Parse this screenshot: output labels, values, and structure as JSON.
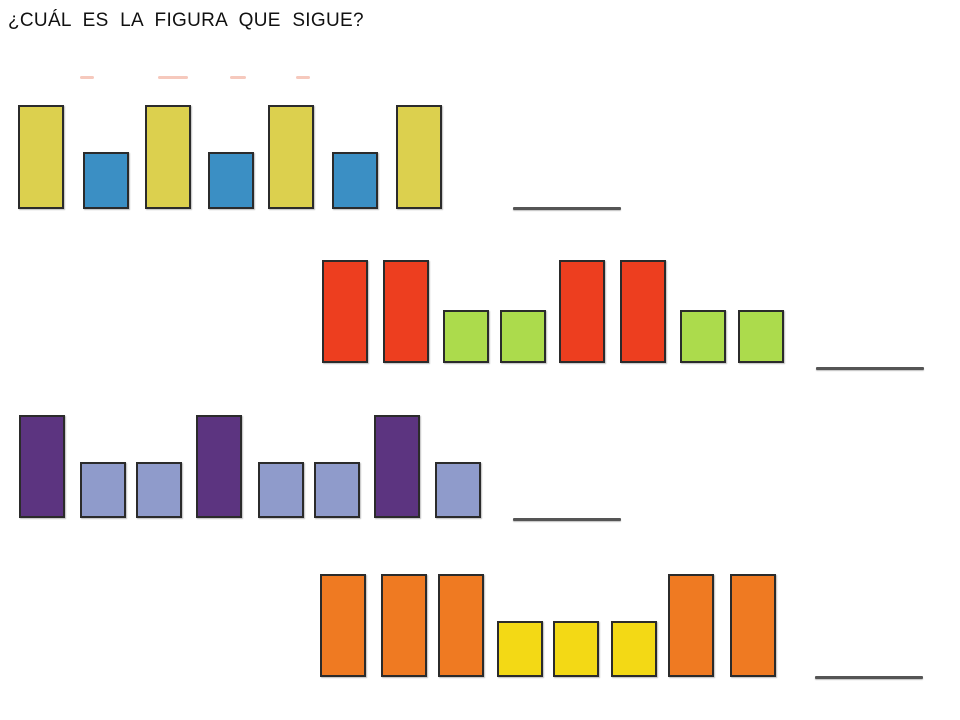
{
  "title": "¿CUÁL ES LA FIGURA QUE SIGUE?",
  "colors": {
    "yellow_olive": "#dcd04e",
    "blue": "#3b8fc4",
    "red": "#ed3e1f",
    "lime": "#acdb4c",
    "purple": "#5c3480",
    "lavender": "#8f9bcb",
    "orange": "#ef7a22",
    "yellow": "#f3d915",
    "answer_line": "#555555"
  },
  "patterns": [
    {
      "name": "pattern-row-1",
      "sequence": [
        "tall",
        "short",
        "tall",
        "short",
        "tall",
        "short",
        "tall"
      ],
      "tall_color": "#dcd04e",
      "short_color": "#3b8fc4"
    },
    {
      "name": "pattern-row-2",
      "sequence": [
        "tall",
        "tall",
        "short",
        "short",
        "tall",
        "tall",
        "short",
        "short"
      ],
      "tall_color": "#ed3e1f",
      "short_color": "#acdb4c"
    },
    {
      "name": "pattern-row-3",
      "sequence": [
        "tall",
        "short",
        "short",
        "tall",
        "short",
        "short",
        "tall",
        "short"
      ],
      "tall_color": "#5c3480",
      "short_color": "#8f9bcb"
    },
    {
      "name": "pattern-row-4",
      "sequence": [
        "tall",
        "tall",
        "tall",
        "short",
        "short",
        "short",
        "tall",
        "tall"
      ],
      "tall_color": "#ef7a22",
      "short_color": "#f3d915"
    }
  ]
}
